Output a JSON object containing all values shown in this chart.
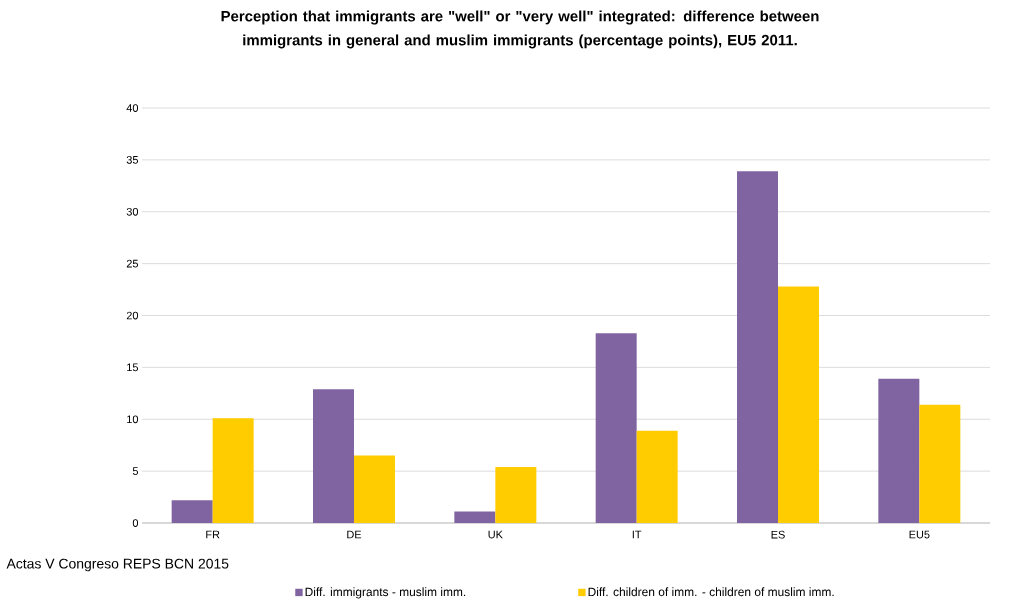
{
  "chart_data": {
    "type": "bar",
    "title": "Perception that immigrants are \"well\" or \"very well\" integrated: difference between immigrants in general and muslim immigrants (percentage points), EU5 2011.",
    "categories": [
      "FR",
      "DE",
      "UK",
      "IT",
      "ES",
      "EU5"
    ],
    "series": [
      {
        "name": "Diff. immigrants - muslim imm.",
        "color": "#8064a2",
        "values": [
          2.2,
          12.9,
          1.1,
          18.3,
          33.9,
          13.9
        ]
      },
      {
        "name": "Diff. children of imm. - children of muslim imm.",
        "color": "#ffcc00",
        "values": [
          10.1,
          6.5,
          5.4,
          8.9,
          22.8,
          11.4
        ]
      }
    ],
    "ylim": [
      0,
      40
    ],
    "yticks": [
      0,
      5,
      10,
      15,
      20,
      25,
      30,
      35,
      40
    ],
    "grid": "y",
    "legend": "bottom",
    "annotations": [
      "Actas V Congreso REPS BCN 2015"
    ]
  }
}
